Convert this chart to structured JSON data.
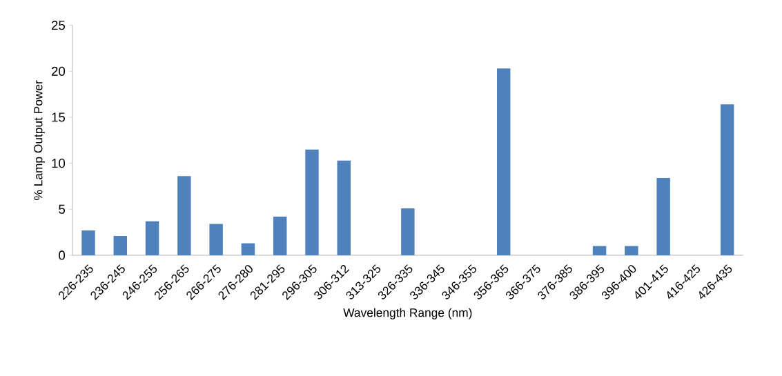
{
  "chart_data": {
    "type": "bar",
    "xlabel": "Wavelength Range (nm)",
    "ylabel": "% Lamp Output Power",
    "categories": [
      "226-235",
      "236-245",
      "246-255",
      "256-265",
      "266-275",
      "276-280",
      "281-295",
      "296-305",
      "306-312",
      "313-325",
      "326-335",
      "336-345",
      "346-355",
      "356-365",
      "366-375",
      "376-385",
      "386-395",
      "396-400",
      "401-415",
      "416-425",
      "426-435"
    ],
    "values": [
      2.7,
      2.1,
      3.7,
      8.6,
      3.4,
      1.3,
      4.2,
      11.5,
      10.3,
      0,
      5.1,
      0,
      0,
      20.3,
      0,
      0,
      1.0,
      1.0,
      8.4,
      0,
      16.4
    ],
    "color": "#4f81bd",
    "ylim": [
      0,
      25
    ],
    "yticks": [
      0,
      5,
      10,
      15,
      20,
      25
    ],
    "grid": false
  }
}
